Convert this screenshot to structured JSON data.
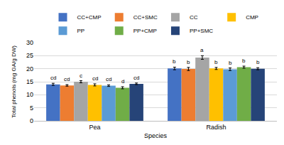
{
  "chart_data": {
    "type": "bar",
    "x_label": "Species",
    "y_label": "Total phenols (mg GA/g DW)",
    "categories": [
      "Pea",
      "Radish"
    ],
    "ylim": [
      0,
      30
    ],
    "yticks": [
      0,
      5,
      10,
      15,
      20,
      25,
      30
    ],
    "grid": true,
    "legend": "top",
    "series": [
      {
        "name": "CC+CMP",
        "color": "#4472c4",
        "values": [
          14.0,
          20.1
        ],
        "error": [
          0.4,
          0.5
        ],
        "annotations": [
          "cd",
          "b"
        ]
      },
      {
        "name": "CC+SMC",
        "color": "#ed7d31",
        "values": [
          13.6,
          19.9
        ],
        "error": [
          0.3,
          0.6
        ],
        "annotations": [
          "cd",
          "b"
        ]
      },
      {
        "name": "CC",
        "color": "#a5a5a5",
        "values": [
          15.0,
          24.3
        ],
        "error": [
          0.4,
          0.7
        ],
        "annotations": [
          "c",
          "a"
        ]
      },
      {
        "name": "CMP",
        "color": "#ffc000",
        "values": [
          13.8,
          20.1
        ],
        "error": [
          0.4,
          0.4
        ],
        "annotations": [
          "cd",
          "b"
        ]
      },
      {
        "name": "PP",
        "color": "#5b9bd5",
        "values": [
          13.5,
          19.8
        ],
        "error": [
          0.3,
          0.5
        ],
        "annotations": [
          "cd",
          "b"
        ]
      },
      {
        "name": "PP+CMP",
        "color": "#70ad47",
        "values": [
          12.7,
          20.6
        ],
        "error": [
          0.4,
          0.4
        ],
        "annotations": [
          "d",
          "b"
        ]
      },
      {
        "name": "PP+SMC",
        "color": "#264478",
        "values": [
          14.2,
          20.0
        ],
        "error": [
          0.3,
          0.4
        ],
        "annotations": [
          "cd",
          "b"
        ]
      }
    ]
  }
}
